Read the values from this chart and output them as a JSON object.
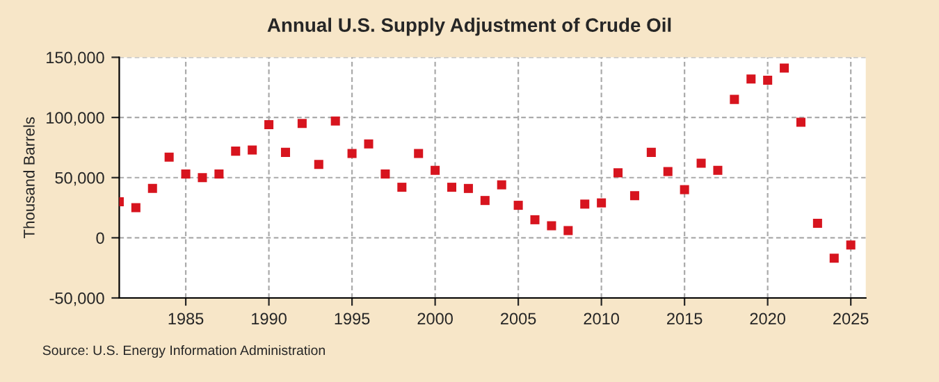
{
  "chart_data": {
    "type": "scatter",
    "title": "Annual U.S. Supply Adjustment of Crude Oil",
    "ylabel": "Thousand Barrels",
    "x": [
      1981,
      1982,
      1983,
      1984,
      1985,
      1986,
      1987,
      1988,
      1989,
      1990,
      1991,
      1992,
      1993,
      1994,
      1995,
      1996,
      1997,
      1998,
      1999,
      2000,
      2001,
      2002,
      2003,
      2004,
      2005,
      2006,
      2007,
      2008,
      2009,
      2010,
      2011,
      2012,
      2013,
      2014,
      2015,
      2016,
      2017,
      2018,
      2019,
      2020,
      2021,
      2022,
      2023,
      2024,
      2025
    ],
    "series": [
      {
        "color": "#d7141e",
        "values": [
          30000,
          25000,
          41000,
          67000,
          53000,
          50000,
          53000,
          72000,
          73000,
          94000,
          71000,
          95000,
          61000,
          97000,
          70000,
          78000,
          53000,
          42000,
          70000,
          56000,
          42000,
          41000,
          31000,
          44000,
          27000,
          15000,
          10000,
          6000,
          28000,
          29000,
          54000,
          35000,
          71000,
          55000,
          40000,
          62000,
          56000,
          115000,
          132000,
          131000,
          141000,
          96000,
          12000,
          -17000,
          -6000
        ]
      }
    ],
    "xlim": [
      1981,
      2025.9
    ],
    "xticks": [
      1985,
      1990,
      1995,
      2000,
      2005,
      2010,
      2015,
      2020,
      2025
    ],
    "ylim": [
      -50000,
      150000
    ],
    "yticks": [
      {
        "value": -50000,
        "label": "-50,000"
      },
      {
        "value": 0,
        "label": "0"
      },
      {
        "value": 50000,
        "label": "50,000"
      },
      {
        "value": 100000,
        "label": "100,000"
      },
      {
        "value": 150000,
        "label": "150,000"
      }
    ],
    "grid": true,
    "marker": "square",
    "annotations": [
      "Source: U.S. Energy Information Administration"
    ]
  }
}
